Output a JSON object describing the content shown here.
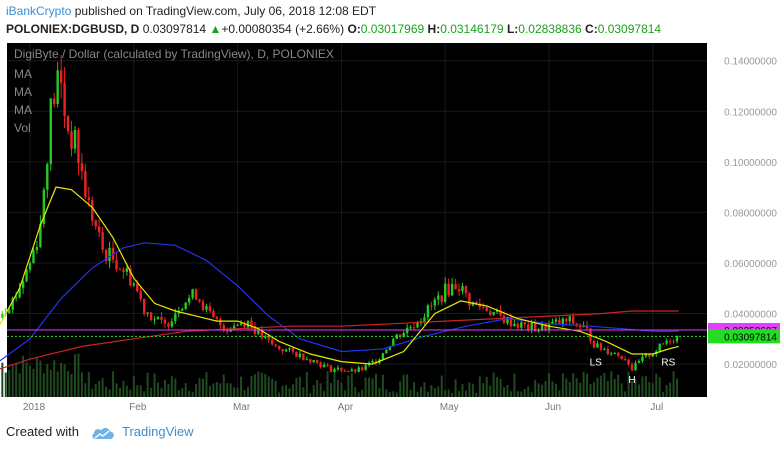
{
  "header": {
    "author": "iBankCrypto",
    "published_text": "published on TradingView.com, July 06, 2018 12:08 EDT",
    "symbol": "POLONIEX:DGBUSD, D",
    "last": "0.03097814",
    "change_arrow": "▲",
    "change": "+0.00080354 (+2.66%)",
    "o_label": "O:",
    "o": "0.03017969",
    "h_label": "H:",
    "h": "0.03146179",
    "l_label": "L:",
    "l": "0.02838836",
    "c_label": "C:",
    "c": "0.03097814"
  },
  "chart_data": {
    "type": "candlestick",
    "title": "DigiByte / Dollar (calculated by TradingView), D, POLONIEX",
    "indicator_labels": [
      "MA",
      "MA",
      "MA",
      "Vol"
    ],
    "y_ticks": [
      "0.14000000",
      "0.12000000",
      "0.10000000",
      "0.08000000",
      "0.06000000",
      "0.04000000",
      "0.02000000"
    ],
    "y_tick_values": [
      0.14,
      0.12,
      0.1,
      0.08,
      0.06,
      0.04,
      0.02
    ],
    "ylim": [
      0.007,
      0.147
    ],
    "x_ticks": [
      "2018",
      "Feb",
      "Mar",
      "Apr",
      "May",
      "Jun",
      "Jul"
    ],
    "x_tick_months": [
      0,
      1,
      2,
      3,
      4,
      5,
      6
    ],
    "price_badges": [
      {
        "label": "0.03350697",
        "value": 0.0335,
        "color": "#e040fb"
      },
      {
        "label": "0.03097814",
        "value": 0.03098,
        "color": "#22dd22"
      }
    ],
    "pattern_labels": [
      {
        "text": "LS",
        "month": 5.45,
        "value": 0.0195
      },
      {
        "text": "H",
        "month": 5.8,
        "value": 0.0125
      },
      {
        "text": "RS",
        "month": 6.15,
        "value": 0.0195
      }
    ],
    "price_path": [
      [
        -0.3,
        0.04
      ],
      [
        -0.15,
        0.046
      ],
      [
        0.0,
        0.06
      ],
      [
        0.1,
        0.075
      ],
      [
        0.2,
        0.12
      ],
      [
        0.28,
        0.135
      ],
      [
        0.35,
        0.115
      ],
      [
        0.45,
        0.105
      ],
      [
        0.55,
        0.085
      ],
      [
        0.7,
        0.065
      ],
      [
        0.85,
        0.06
      ],
      [
        0.95,
        0.055
      ],
      [
        1.0,
        0.052
      ],
      [
        1.1,
        0.042
      ],
      [
        1.2,
        0.038
      ],
      [
        1.3,
        0.035
      ],
      [
        1.45,
        0.044
      ],
      [
        1.6,
        0.048
      ],
      [
        1.75,
        0.038
      ],
      [
        1.9,
        0.034
      ],
      [
        2.0,
        0.036
      ],
      [
        2.1,
        0.037
      ],
      [
        2.2,
        0.032
      ],
      [
        2.35,
        0.027
      ],
      [
        2.5,
        0.025
      ],
      [
        2.7,
        0.022
      ],
      [
        2.9,
        0.018
      ],
      [
        3.0,
        0.018
      ],
      [
        3.1,
        0.017
      ],
      [
        3.2,
        0.018
      ],
      [
        3.35,
        0.022
      ],
      [
        3.5,
        0.03
      ],
      [
        3.7,
        0.036
      ],
      [
        3.85,
        0.042
      ],
      [
        4.0,
        0.049
      ],
      [
        4.12,
        0.052
      ],
      [
        4.25,
        0.044
      ],
      [
        4.4,
        0.042
      ],
      [
        4.55,
        0.038
      ],
      [
        4.75,
        0.035
      ],
      [
        4.9,
        0.034
      ],
      [
        5.05,
        0.036
      ],
      [
        5.2,
        0.037
      ],
      [
        5.35,
        0.034
      ],
      [
        5.45,
        0.027
      ],
      [
        5.6,
        0.025
      ],
      [
        5.75,
        0.022
      ],
      [
        5.8,
        0.018
      ],
      [
        5.9,
        0.022
      ],
      [
        6.05,
        0.026
      ],
      [
        6.15,
        0.03
      ],
      [
        6.25,
        0.031
      ]
    ],
    "ma_short": [
      [
        -0.3,
        0.035
      ],
      [
        -0.1,
        0.05
      ],
      [
        0.1,
        0.075
      ],
      [
        0.25,
        0.09
      ],
      [
        0.4,
        0.089
      ],
      [
        0.6,
        0.082
      ],
      [
        0.8,
        0.07
      ],
      [
        1.0,
        0.054
      ],
      [
        1.2,
        0.044
      ],
      [
        1.4,
        0.041
      ],
      [
        1.6,
        0.039
      ],
      [
        1.8,
        0.037
      ],
      [
        2.0,
        0.037
      ],
      [
        2.2,
        0.034
      ],
      [
        2.4,
        0.029
      ],
      [
        2.7,
        0.024
      ],
      [
        3.0,
        0.021
      ],
      [
        3.3,
        0.02
      ],
      [
        3.6,
        0.025
      ],
      [
        3.9,
        0.04
      ],
      [
        4.15,
        0.045
      ],
      [
        4.4,
        0.043
      ],
      [
        4.7,
        0.038
      ],
      [
        5.0,
        0.035
      ],
      [
        5.3,
        0.033
      ],
      [
        5.55,
        0.029
      ],
      [
        5.8,
        0.024
      ],
      [
        6.0,
        0.024
      ],
      [
        6.15,
        0.026
      ],
      [
        6.25,
        0.027
      ]
    ],
    "ma_mid": [
      [
        -0.3,
        0.021
      ],
      [
        0.0,
        0.03
      ],
      [
        0.3,
        0.046
      ],
      [
        0.6,
        0.058
      ],
      [
        0.9,
        0.066
      ],
      [
        1.1,
        0.068
      ],
      [
        1.4,
        0.067
      ],
      [
        1.7,
        0.061
      ],
      [
        2.0,
        0.051
      ],
      [
        2.3,
        0.039
      ],
      [
        2.6,
        0.03
      ],
      [
        3.0,
        0.025
      ],
      [
        3.4,
        0.026
      ],
      [
        3.8,
        0.031
      ],
      [
        4.2,
        0.035
      ],
      [
        4.6,
        0.038
      ],
      [
        5.0,
        0.036
      ],
      [
        5.4,
        0.035
      ],
      [
        5.7,
        0.034
      ],
      [
        6.0,
        0.033
      ],
      [
        6.25,
        0.033
      ]
    ],
    "ma_long": [
      [
        -0.3,
        0.018
      ],
      [
        0.0,
        0.022
      ],
      [
        0.5,
        0.027
      ],
      [
        1.0,
        0.03
      ],
      [
        1.5,
        0.033
      ],
      [
        2.0,
        0.034
      ],
      [
        2.5,
        0.035
      ],
      [
        3.0,
        0.035
      ],
      [
        3.5,
        0.036
      ],
      [
        4.0,
        0.037
      ],
      [
        4.5,
        0.038
      ],
      [
        5.0,
        0.039
      ],
      [
        5.5,
        0.04
      ],
      [
        5.8,
        0.041
      ],
      [
        6.25,
        0.041
      ]
    ],
    "ma_colors": {
      "short": "#e8e800",
      "mid": "#2233ee",
      "long": "#cc2222"
    },
    "colors": {
      "up": "#22cc22",
      "down": "#ee2222",
      "background": "#000000",
      "grid": "#1a1a1a",
      "axis_text": "#999999",
      "volume": "#1f4a1f"
    }
  },
  "footer": {
    "created_with": "Created with",
    "brand": "TradingView"
  }
}
